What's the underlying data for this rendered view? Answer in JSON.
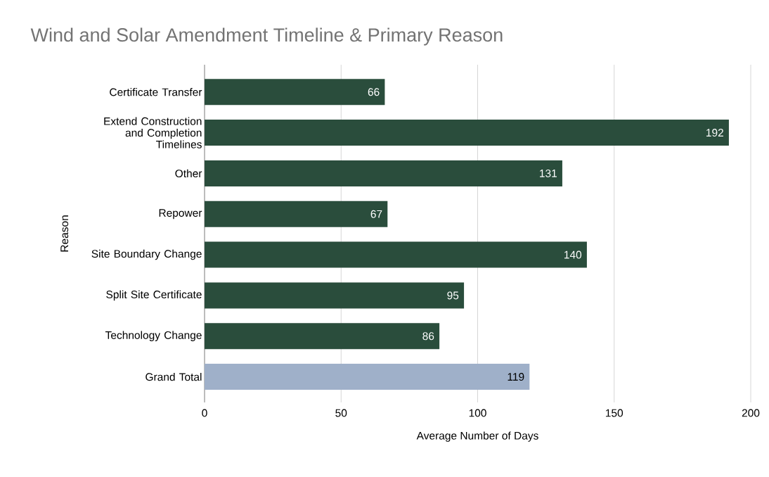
{
  "chart_data": {
    "type": "bar",
    "orientation": "horizontal",
    "title": "Wind and Solar Amendment Timeline & Primary Reason",
    "xlabel": "Average Number of Days",
    "ylabel": "Reason",
    "categories": [
      "Certificate Transfer",
      "Extend Construction and Completion Timelines",
      "Other",
      "Repower",
      "Site Boundary Change",
      "Split Site Certificate",
      "Technology Change",
      "Grand Total"
    ],
    "values": [
      66,
      192,
      131,
      67,
      140,
      95,
      86,
      119
    ],
    "colors": [
      "#2a4d3c",
      "#2a4d3c",
      "#2a4d3c",
      "#2a4d3c",
      "#2a4d3c",
      "#2a4d3c",
      "#2a4d3c",
      "#9fb0c9"
    ],
    "xlim": [
      0,
      200
    ],
    "xticks": [
      0,
      50,
      100,
      150,
      200
    ],
    "grid": "x",
    "data_labels": true
  }
}
